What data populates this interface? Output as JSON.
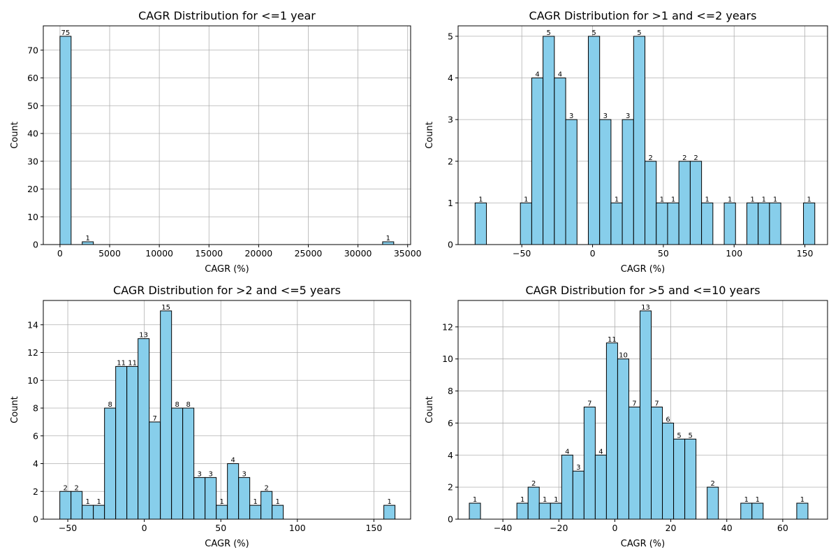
{
  "chart_data": [
    {
      "type": "bar",
      "title": "CAGR Distribution for <=1 year",
      "xlabel": "CAGR (%)",
      "ylabel": "Count",
      "xlim": [
        -1680,
        35300
      ],
      "ylim": [
        0,
        78.75
      ],
      "xticks": [
        0,
        5000,
        10000,
        15000,
        20000,
        25000,
        30000,
        35000
      ],
      "yticks": [
        0,
        10,
        20,
        30,
        40,
        50,
        60,
        70
      ],
      "bar_color": "#87ceeb",
      "edge_color": "#000000",
      "grid": true,
      "bins": [
        {
          "x0": 0,
          "x1": 1120,
          "count": 75
        },
        {
          "x0": 2240,
          "x1": 3360,
          "count": 1
        },
        {
          "x0": 32480,
          "x1": 33600,
          "count": 1
        }
      ]
    },
    {
      "type": "bar",
      "title": "CAGR Distribution for >1 and <=2 years",
      "xlabel": "CAGR (%)",
      "ylabel": "Count",
      "xlim": [
        -95,
        166
      ],
      "ylim": [
        0,
        5.25
      ],
      "xticks": [
        -50,
        0,
        50,
        100,
        150
      ],
      "yticks": [
        0,
        1,
        2,
        3,
        4,
        5
      ],
      "bar_color": "#87ceeb",
      "edge_color": "#000000",
      "grid": true,
      "bins": [
        {
          "x0": -83,
          "x1": -75,
          "count": 1
        },
        {
          "x0": -51,
          "x1": -43,
          "count": 1
        },
        {
          "x0": -43,
          "x1": -35,
          "count": 4
        },
        {
          "x0": -35,
          "x1": -27,
          "count": 5
        },
        {
          "x0": -27,
          "x1": -19,
          "count": 4
        },
        {
          "x0": -19,
          "x1": -11,
          "count": 3
        },
        {
          "x0": -3,
          "x1": 5,
          "count": 5
        },
        {
          "x0": 5,
          "x1": 13,
          "count": 3
        },
        {
          "x0": 13,
          "x1": 21,
          "count": 1
        },
        {
          "x0": 21,
          "x1": 29,
          "count": 3
        },
        {
          "x0": 29,
          "x1": 37,
          "count": 5
        },
        {
          "x0": 37,
          "x1": 45,
          "count": 2
        },
        {
          "x0": 45,
          "x1": 53,
          "count": 1
        },
        {
          "x0": 53,
          "x1": 61,
          "count": 1
        },
        {
          "x0": 61,
          "x1": 69,
          "count": 2
        },
        {
          "x0": 69,
          "x1": 77,
          "count": 2
        },
        {
          "x0": 77,
          "x1": 85,
          "count": 1
        },
        {
          "x0": 93,
          "x1": 101,
          "count": 1
        },
        {
          "x0": 109,
          "x1": 117,
          "count": 1
        },
        {
          "x0": 117,
          "x1": 125,
          "count": 1
        },
        {
          "x0": 125,
          "x1": 133,
          "count": 1
        },
        {
          "x0": 149,
          "x1": 157,
          "count": 1
        }
      ]
    },
    {
      "type": "bar",
      "title": "CAGR Distribution for >2 and <=5 years",
      "xlabel": "CAGR (%)",
      "ylabel": "Count",
      "xlim": [
        -66,
        174
      ],
      "ylim": [
        0,
        15.75
      ],
      "xticks": [
        -50,
        0,
        50,
        100,
        150
      ],
      "yticks": [
        0,
        2,
        4,
        6,
        8,
        10,
        12,
        14
      ],
      "bar_color": "#87ceeb",
      "edge_color": "#000000",
      "grid": true,
      "bins": [
        {
          "x0": -55.2,
          "x1": -47.9,
          "count": 2
        },
        {
          "x0": -47.9,
          "x1": -40.6,
          "count": 2
        },
        {
          "x0": -40.6,
          "x1": -33.3,
          "count": 1
        },
        {
          "x0": -33.3,
          "x1": -26.0,
          "count": 1
        },
        {
          "x0": -26.0,
          "x1": -18.7,
          "count": 8
        },
        {
          "x0": -18.7,
          "x1": -11.4,
          "count": 11
        },
        {
          "x0": -11.4,
          "x1": -4.1,
          "count": 11
        },
        {
          "x0": -4.1,
          "x1": 3.2,
          "count": 13
        },
        {
          "x0": 3.2,
          "x1": 10.5,
          "count": 7
        },
        {
          "x0": 10.5,
          "x1": 17.8,
          "count": 15
        },
        {
          "x0": 17.8,
          "x1": 25.1,
          "count": 8
        },
        {
          "x0": 25.1,
          "x1": 32.4,
          "count": 8
        },
        {
          "x0": 32.4,
          "x1": 39.7,
          "count": 3
        },
        {
          "x0": 39.7,
          "x1": 47.0,
          "count": 3
        },
        {
          "x0": 47.0,
          "x1": 54.3,
          "count": 1
        },
        {
          "x0": 54.3,
          "x1": 61.6,
          "count": 4
        },
        {
          "x0": 61.6,
          "x1": 68.9,
          "count": 3
        },
        {
          "x0": 68.9,
          "x1": 76.2,
          "count": 1
        },
        {
          "x0": 76.2,
          "x1": 83.5,
          "count": 2
        },
        {
          "x0": 83.5,
          "x1": 90.8,
          "count": 1
        },
        {
          "x0": 156.5,
          "x1": 163.8,
          "count": 1
        }
      ]
    },
    {
      "type": "bar",
      "title": "CAGR Distribution for >5 and <=10 years",
      "xlabel": "CAGR (%)",
      "ylabel": "Count",
      "xlim": [
        -56,
        76
      ],
      "ylim": [
        0,
        13.65
      ],
      "xticks": [
        -40,
        -20,
        0,
        20,
        40,
        60
      ],
      "yticks": [
        0,
        2,
        4,
        6,
        8,
        10,
        12
      ],
      "bar_color": "#87ceeb",
      "edge_color": "#000000",
      "grid": true,
      "bins": [
        {
          "x0": -52.0,
          "x1": -48.0,
          "count": 1
        },
        {
          "x0": -35.0,
          "x1": -31.0,
          "count": 1
        },
        {
          "x0": -31.0,
          "x1": -27.0,
          "count": 2
        },
        {
          "x0": -27.0,
          "x1": -23.0,
          "count": 1
        },
        {
          "x0": -23.0,
          "x1": -19.0,
          "count": 1
        },
        {
          "x0": -19.0,
          "x1": -15.0,
          "count": 4
        },
        {
          "x0": -15.0,
          "x1": -11.0,
          "count": 3
        },
        {
          "x0": -11.0,
          "x1": -7.0,
          "count": 7
        },
        {
          "x0": -7.0,
          "x1": -3.0,
          "count": 4
        },
        {
          "x0": -3.0,
          "x1": 1.0,
          "count": 11
        },
        {
          "x0": 1.0,
          "x1": 5.0,
          "count": 10
        },
        {
          "x0": 5.0,
          "x1": 9.0,
          "count": 7
        },
        {
          "x0": 9.0,
          "x1": 13.0,
          "count": 13
        },
        {
          "x0": 13.0,
          "x1": 17.0,
          "count": 7
        },
        {
          "x0": 17.0,
          "x1": 21.0,
          "count": 6
        },
        {
          "x0": 21.0,
          "x1": 25.0,
          "count": 5
        },
        {
          "x0": 25.0,
          "x1": 29.0,
          "count": 5
        },
        {
          "x0": 33.0,
          "x1": 37.0,
          "count": 2
        },
        {
          "x0": 45.0,
          "x1": 49.0,
          "count": 1
        },
        {
          "x0": 49.0,
          "x1": 53.0,
          "count": 1
        },
        {
          "x0": 65.0,
          "x1": 69.0,
          "count": 1
        }
      ]
    }
  ]
}
